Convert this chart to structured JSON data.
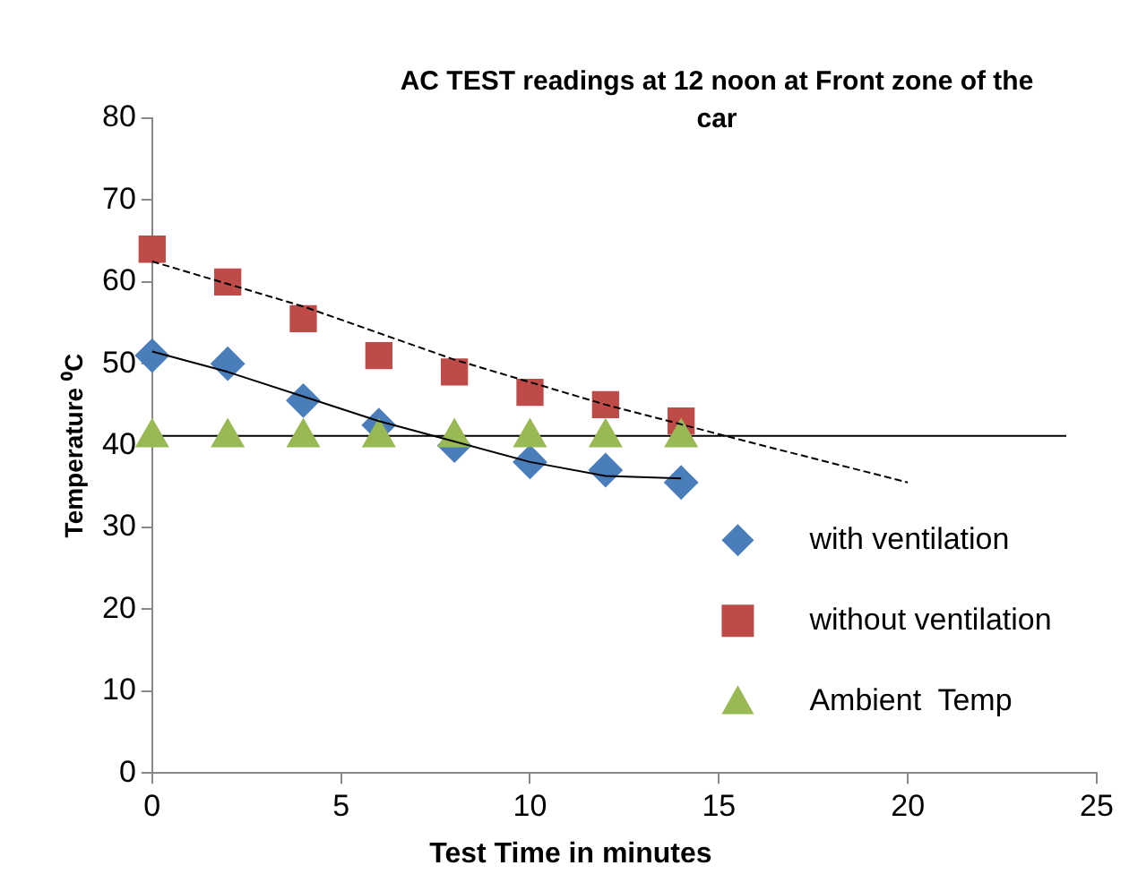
{
  "chart_data": {
    "type": "scatter",
    "title": "AC TEST readings at 12 noon at Front zone of the car",
    "xlabel": "Test Time in minutes",
    "ylabel": "Temperature ⁰C",
    "xlim": [
      0,
      25
    ],
    "xticks": [
      0,
      5,
      10,
      15,
      20,
      25
    ],
    "ylim": [
      0,
      80
    ],
    "yticks": [
      0,
      10,
      20,
      30,
      40,
      50,
      60,
      70,
      80
    ],
    "grid": false,
    "legend": "bottom right",
    "series": [
      {
        "name": "with ventilation",
        "color": "#4a7ebb",
        "marker": "diamond",
        "x": [
          0,
          2,
          4,
          6,
          8,
          10,
          12,
          14
        ],
        "values": [
          51,
          50,
          45.5,
          42.5,
          40,
          38,
          37,
          35.5
        ]
      },
      {
        "name": "without ventilation",
        "color": "#be4b48",
        "marker": "square",
        "x": [
          0,
          2,
          4,
          6,
          8,
          10,
          12,
          14
        ],
        "values": [
          64,
          60,
          55.5,
          51,
          49,
          46.5,
          45,
          43
        ]
      },
      {
        "name": "Ambient  Temp",
        "color": "#98b954",
        "marker": "triangle",
        "x": [
          0,
          2,
          4,
          6,
          8,
          10,
          12,
          14
        ],
        "values": [
          41,
          41,
          41,
          41,
          41,
          41,
          41,
          41
        ]
      },
      {
        "type": "line",
        "color": "#000000",
        "line_style": "solid",
        "marker": "none",
        "x": [
          0,
          2,
          4,
          6,
          8,
          10,
          12,
          14
        ],
        "values": [
          51.5,
          49,
          46,
          43,
          40.5,
          38,
          36.3,
          36
        ]
      },
      {
        "type": "line",
        "color": "#000000",
        "line_style": "dashed",
        "marker": "none",
        "x": [
          0,
          4,
          8,
          12,
          16,
          20
        ],
        "values": [
          62.5,
          57,
          50.5,
          45,
          40.2,
          35.5
        ]
      }
    ],
    "ref_lines": [
      {
        "axis": "y",
        "value": 41.2,
        "color": "#000000"
      }
    ]
  }
}
